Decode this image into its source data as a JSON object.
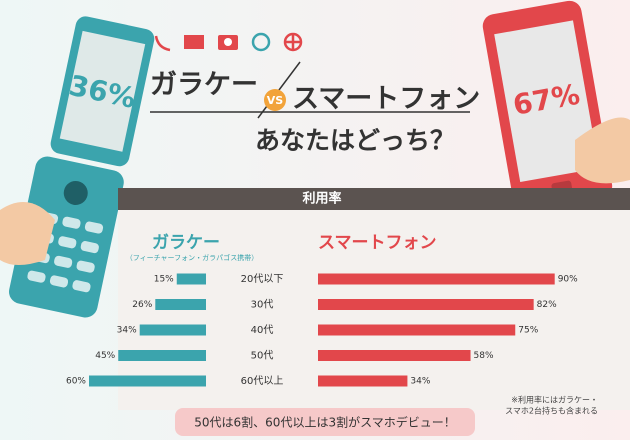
{
  "header": {
    "title_left": "ガラケー",
    "vs": "VS",
    "title_right": "スマートフォン",
    "question": "あなたはどっち？"
  },
  "phones": {
    "left": "36%",
    "right": "67%"
  },
  "chart_data": {
    "type": "bar",
    "title": "利用率",
    "categories": [
      "20代以下",
      "30代",
      "40代",
      "50代",
      "60代以上"
    ],
    "series": [
      {
        "name": "ガラケー",
        "subtitle": "（フィーチャーフォン・ガラパゴス携帯）",
        "color": "#3ba4ad",
        "values": [
          15,
          26,
          34,
          45,
          60
        ],
        "value_labels": [
          "15%",
          "26%",
          "34%",
          "45%",
          "60%"
        ]
      },
      {
        "name": "スマートフォン",
        "color": "#e2474b",
        "values": [
          90,
          82,
          75,
          58,
          34
        ],
        "value_labels": [
          "90%",
          "82%",
          "75%",
          "58%",
          "34%"
        ]
      }
    ],
    "note": [
      "※利用率にはガラケー・",
      "スマホ2台持ちも含まれる"
    ]
  },
  "banner": "50代は6割、60代以上は3割がスマホデビュー！"
}
